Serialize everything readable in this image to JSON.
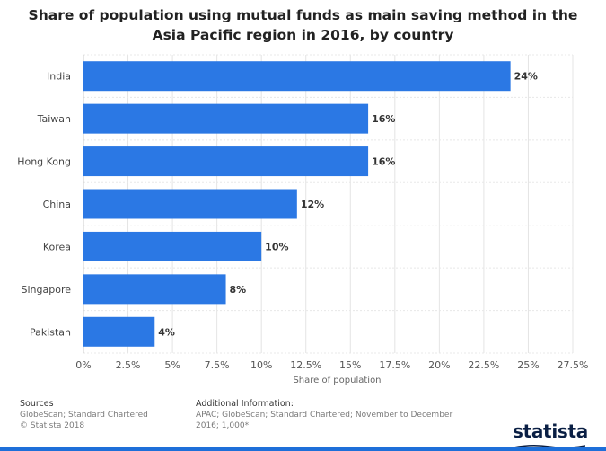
{
  "chart_data": {
    "type": "bar",
    "orientation": "horizontal",
    "title": "Share of population using mutual funds as main saving method in the Asia Pacific region in 2016, by country",
    "categories": [
      "India",
      "Taiwan",
      "Hong Kong",
      "China",
      "Korea",
      "Singapore",
      "Pakistan"
    ],
    "values": [
      24,
      16,
      16,
      12,
      10,
      8,
      4
    ],
    "value_labels": [
      "24%",
      "16%",
      "16%",
      "12%",
      "10%",
      "8%",
      "4%"
    ],
    "xlabel": "Share of population",
    "ylabel": "",
    "xlim": [
      0,
      27.5
    ],
    "ticks": [
      0,
      2.5,
      5,
      7.5,
      10,
      12.5,
      15,
      17.5,
      20,
      22.5,
      25,
      27.5
    ],
    "tick_labels": [
      "0%",
      "2.5%",
      "5%",
      "7.5%",
      "10%",
      "12.5%",
      "15%",
      "17.5%",
      "20%",
      "22.5%",
      "25%",
      "27.5%"
    ],
    "grid": true,
    "bar_color": "#2b78e4"
  },
  "footer": {
    "sources_heading": "Sources",
    "sources_line1": "GlobeScan; Standard Chartered",
    "sources_line2": "© Statista 2018",
    "info_heading": "Additional Information:",
    "info_line1": "APAC; GlobeScan; Standard Chartered; November to December",
    "info_line2": "2016; 1,000*"
  },
  "logo": "statista"
}
